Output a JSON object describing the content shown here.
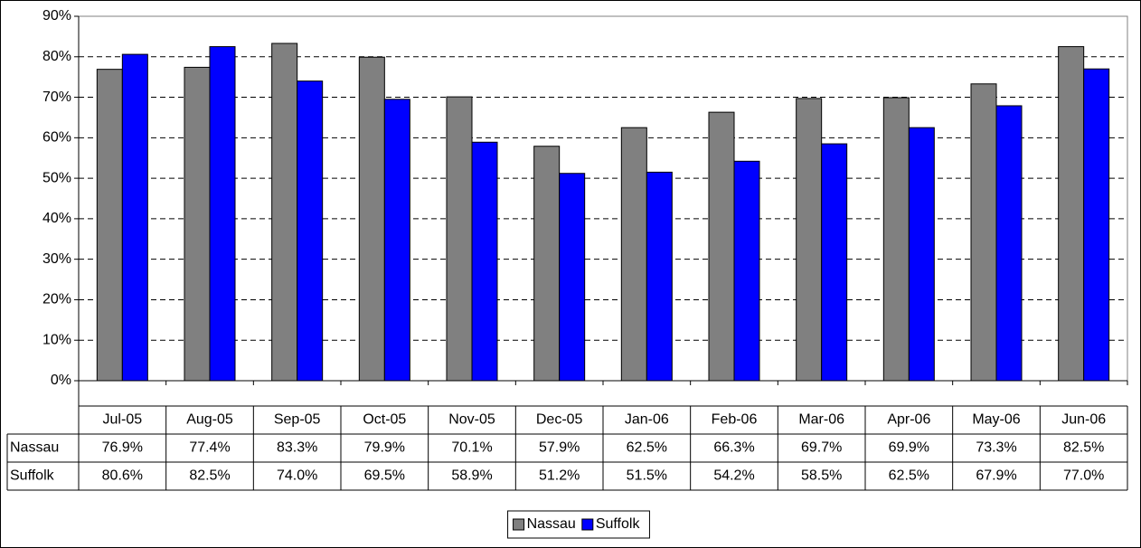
{
  "chart_data": {
    "type": "bar",
    "categories": [
      "Jul-05",
      "Aug-05",
      "Sep-05",
      "Oct-05",
      "Nov-05",
      "Dec-05",
      "Jan-06",
      "Feb-06",
      "Mar-06",
      "Apr-06",
      "May-06",
      "Jun-06"
    ],
    "series": [
      {
        "name": "Nassau",
        "color": "#808080",
        "values": [
          76.9,
          77.4,
          83.3,
          79.9,
          70.1,
          57.9,
          62.5,
          66.3,
          69.7,
          69.9,
          73.3,
          82.5
        ],
        "value_labels": [
          "76.9%",
          "77.4%",
          "83.3%",
          "79.9%",
          "70.1%",
          "57.9%",
          "62.5%",
          "66.3%",
          "69.7%",
          "69.9%",
          "73.3%",
          "82.5%"
        ]
      },
      {
        "name": "Suffolk",
        "color": "#0000ff",
        "values": [
          80.6,
          82.5,
          74.0,
          69.5,
          58.9,
          51.2,
          51.5,
          54.2,
          58.5,
          62.5,
          67.9,
          77.0
        ],
        "value_labels": [
          "80.6%",
          "82.5%",
          "74.0%",
          "69.5%",
          "58.9%",
          "51.2%",
          "51.5%",
          "54.2%",
          "58.5%",
          "62.5%",
          "67.9%",
          "77.0%"
        ]
      }
    ],
    "ylim": [
      0,
      90
    ],
    "yticks": [
      {
        "value": 0,
        "label": "0%"
      },
      {
        "value": 10,
        "label": "10%"
      },
      {
        "value": 20,
        "label": "20%"
      },
      {
        "value": 30,
        "label": "30%"
      },
      {
        "value": 40,
        "label": "40%"
      },
      {
        "value": 50,
        "label": "50%"
      },
      {
        "value": 60,
        "label": "60%"
      },
      {
        "value": 70,
        "label": "70%"
      },
      {
        "value": 80,
        "label": "80%"
      },
      {
        "value": 90,
        "label": "90%"
      }
    ],
    "grid": true,
    "legend": "bottom"
  }
}
